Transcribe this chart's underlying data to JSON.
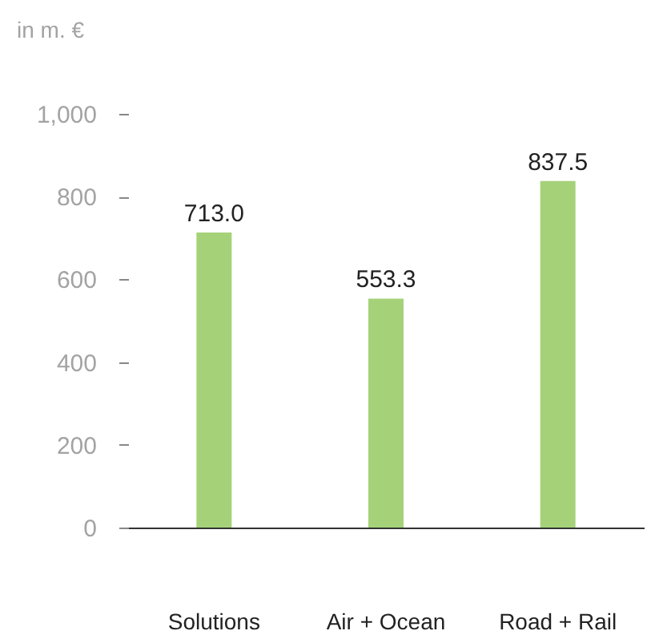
{
  "chart_data": {
    "type": "bar",
    "ylabel": "in m. €",
    "categories": [
      "Solutions",
      "Air + Ocean",
      "Road + Rail"
    ],
    "values": [
      713.0,
      553.3,
      837.5
    ],
    "color": "#a5d279",
    "ylim": [
      0,
      1000
    ],
    "yticks": [
      0,
      200,
      400,
      600,
      800,
      {
        "value": 1000,
        "label": "1,000"
      }
    ],
    "value_labels": [
      "713.0",
      "553.3",
      "837.5"
    ],
    "grid": false
  }
}
